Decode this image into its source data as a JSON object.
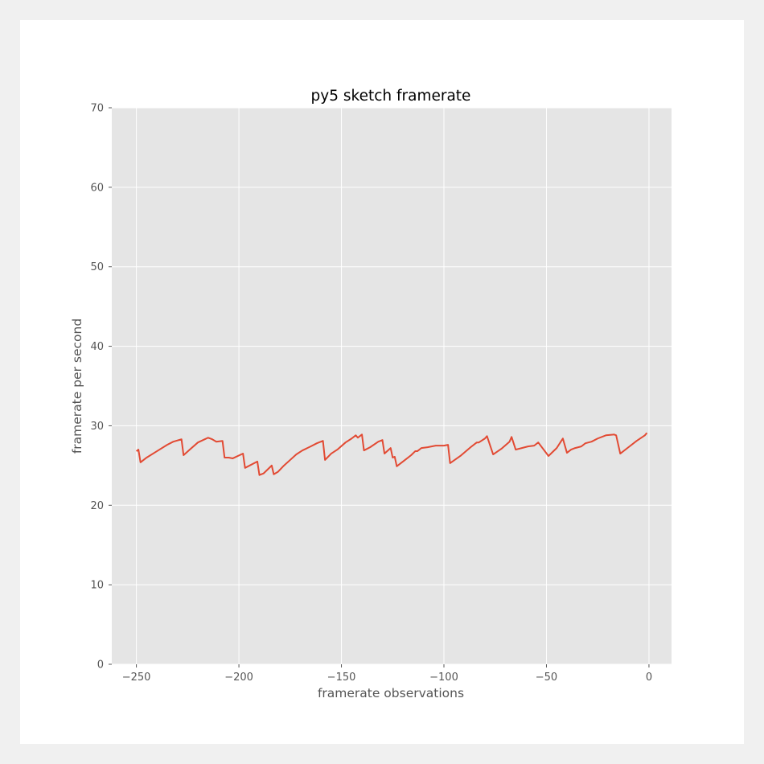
{
  "chart_data": {
    "type": "line",
    "title": "py5 sketch framerate",
    "xlabel": "framerate observations",
    "ylabel": "framerate per second",
    "xlim": [
      -262,
      11
    ],
    "ylim": [
      0,
      70
    ],
    "xticks": [
      -250,
      -200,
      -150,
      -100,
      -50,
      0
    ],
    "yticks": [
      0,
      10,
      20,
      30,
      40,
      50,
      60,
      70
    ],
    "xtick_labels": [
      "−250",
      "−200",
      "−150",
      "−100",
      "−50",
      "0"
    ],
    "ytick_labels": [
      "0",
      "10",
      "20",
      "30",
      "40",
      "50",
      "60",
      "70"
    ],
    "grid": true,
    "legend": "none",
    "colors": {
      "plot_background": "#e5e5e5",
      "grid": "#ffffff",
      "line": "#e24a33",
      "figure_background": "#ffffff",
      "page_background": "#f0f0f0"
    },
    "series": [
      {
        "x": [
          -250,
          -249,
          -248,
          -245,
          -240,
          -235,
          -232,
          -228,
          -227,
          -224,
          -220,
          -215,
          -213,
          -211,
          -208,
          -207,
          -205,
          -203,
          -198,
          -197,
          -191,
          -190,
          -188,
          -184,
          -183,
          -181,
          -178,
          -175,
          -172,
          -169,
          -165,
          -162,
          -159,
          -158,
          -155,
          -152,
          -148,
          -145,
          -143,
          -142,
          -140,
          -139,
          -136,
          -132,
          -130,
          -129,
          -126,
          -125,
          -124,
          -123,
          -120,
          -116,
          -114,
          -113,
          -111,
          -108,
          -104,
          -100,
          -98,
          -97,
          -92,
          -87,
          -84,
          -83,
          -80,
          -79,
          -76,
          -72,
          -68,
          -67,
          -65,
          -62,
          -59,
          -56,
          -54,
          -49,
          -45,
          -43,
          -42,
          -40,
          -38,
          -36,
          -33,
          -31,
          -28,
          -25,
          -21,
          -17,
          -16,
          -14,
          -10,
          -6,
          -2,
          -1
        ],
        "y": [
          26.8,
          27.0,
          25.4,
          26.0,
          26.8,
          27.6,
          28.0,
          28.3,
          26.3,
          27.0,
          27.9,
          28.5,
          28.3,
          28.0,
          28.1,
          26.0,
          26.0,
          25.9,
          26.5,
          24.7,
          25.5,
          23.8,
          24.0,
          25.0,
          23.9,
          24.2,
          25.0,
          25.7,
          26.4,
          26.9,
          27.4,
          27.8,
          28.1,
          25.7,
          26.5,
          27.0,
          27.9,
          28.4,
          28.8,
          28.5,
          28.9,
          26.9,
          27.3,
          28.0,
          28.2,
          26.5,
          27.2,
          26.0,
          26.1,
          24.9,
          25.5,
          26.3,
          26.8,
          26.8,
          27.2,
          27.3,
          27.5,
          27.5,
          27.6,
          25.3,
          26.2,
          27.3,
          27.9,
          27.9,
          28.4,
          28.7,
          26.4,
          27.1,
          28.0,
          28.6,
          27.0,
          27.2,
          27.4,
          27.5,
          27.9,
          26.2,
          27.2,
          28.0,
          28.4,
          26.6,
          27.0,
          27.2,
          27.4,
          27.8,
          28.0,
          28.4,
          28.8,
          28.9,
          28.8,
          26.5,
          27.3,
          28.1,
          28.8,
          29.1
        ]
      }
    ]
  }
}
